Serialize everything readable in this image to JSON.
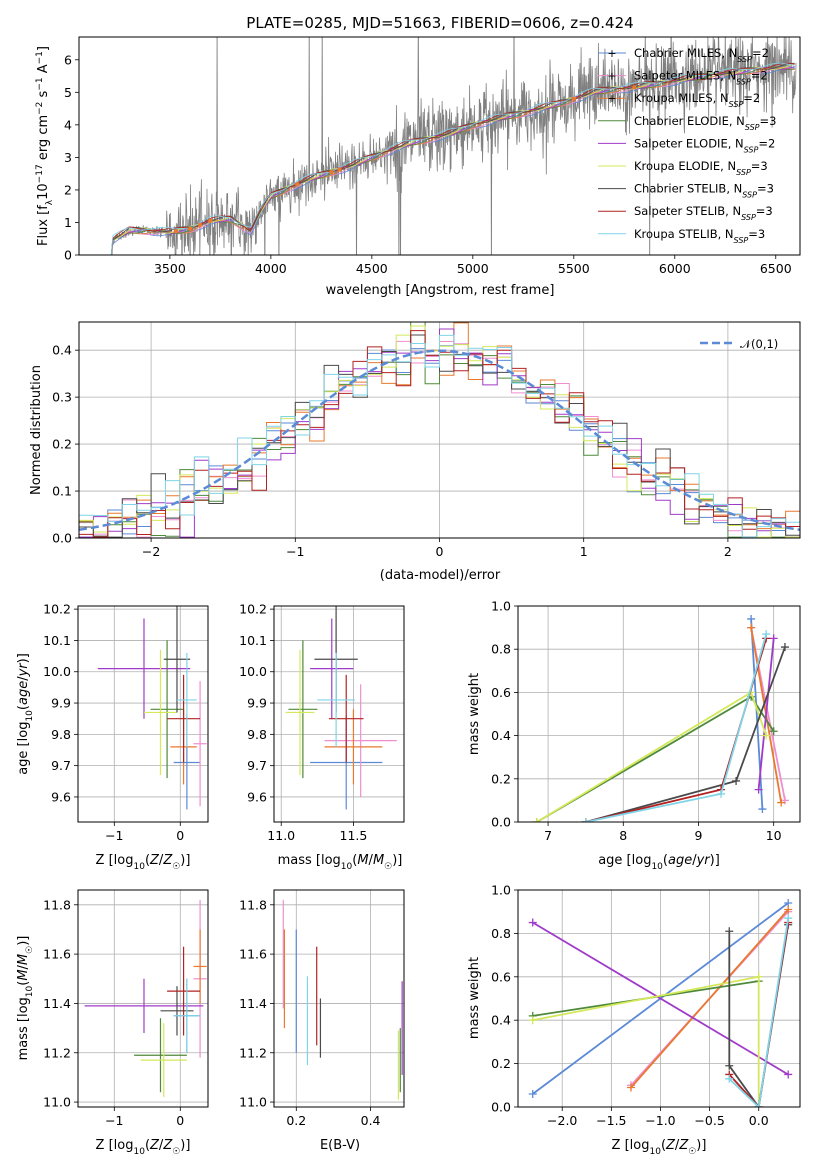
{
  "figure": {
    "title": "PLATE=0285, MJD=51663, FIBERID=0606, z=0.424"
  },
  "colors": {
    "Chabrier MILES": "#5b8ad6",
    "Salpeter MILES": "#f08ed0",
    "Kroupa MILES": "#e8792e",
    "Chabrier ELODIE": "#4e8a3a",
    "Salpeter ELODIE": "#a03bc9",
    "Kroupa ELODIE": "#d4e85a",
    "Chabrier STELIB": "#4a4a4a",
    "Salpeter STELIB": "#b22222",
    "Kroupa STELIB": "#7fd4e8",
    "data": "#808080",
    "normal": "#5b8ad6",
    "grid": "#b0b0b0"
  },
  "chart_data": [
    {
      "id": "spectrum",
      "type": "line",
      "xlabel": "wavelength [Angstrom, rest frame]",
      "ylabel": "Flux [f_λ 10^-17 erg cm^-2 s^-1 A^-1]",
      "xlim": [
        3050,
        6620
      ],
      "ylim": [
        0,
        6.7
      ],
      "xticks": [
        3500,
        4000,
        4500,
        5000,
        5500,
        6000,
        6500
      ],
      "yticks": [
        0,
        1,
        2,
        3,
        4,
        5,
        6
      ],
      "grid": false,
      "legend_position": "top-right",
      "legend": [
        {
          "model": "Chabrier MILES",
          "n": "2"
        },
        {
          "model": "Salpeter MILES",
          "n": "2"
        },
        {
          "model": "Kroupa MILES",
          "n": "2"
        },
        {
          "model": "Chabrier ELODIE",
          "n": "3"
        },
        {
          "model": "Salpeter ELODIE",
          "n": "2"
        },
        {
          "model": "Kroupa ELODIE",
          "n": "3"
        },
        {
          "model": "Chabrier STELIB",
          "n": "3"
        },
        {
          "model": "Salpeter STELIB",
          "n": "3"
        },
        {
          "model": "Kroupa STELIB",
          "n": "3"
        }
      ],
      "continuum": {
        "x": [
          3210,
          3300,
          3400,
          3500,
          3600,
          3700,
          3800,
          3900,
          3950,
          4000,
          4100,
          4200,
          4300,
          4400,
          4500,
          4600,
          4700,
          4800,
          4900,
          5000,
          5100,
          5200,
          5300,
          5400,
          5500,
          5600,
          5700,
          5800,
          5900,
          6000,
          6100,
          6200,
          6300,
          6400,
          6500,
          6600
        ],
        "y": [
          0.45,
          0.75,
          0.75,
          0.7,
          0.8,
          1.05,
          1.1,
          0.75,
          1.35,
          1.8,
          2.1,
          2.35,
          2.55,
          2.75,
          3.0,
          3.25,
          3.45,
          3.6,
          3.75,
          4.0,
          4.15,
          4.3,
          4.45,
          4.6,
          4.8,
          5.0,
          5.1,
          5.15,
          5.25,
          5.35,
          5.45,
          5.55,
          5.6,
          5.7,
          5.75,
          5.8
        ]
      }
    },
    {
      "id": "residuals",
      "type": "line",
      "xlabel": "(data-model)/error",
      "ylabel": "Normed distribution",
      "xlim": [
        -2.5,
        2.5
      ],
      "ylim": [
        0,
        0.46
      ],
      "xticks": [
        -2,
        -1,
        0,
        1,
        2
      ],
      "yticks": [
        0.0,
        0.1,
        0.2,
        0.3,
        0.4
      ],
      "grid": true,
      "legend_position": "top-right",
      "legend_label": "𝒩(0,1)"
    },
    {
      "id": "age-vs-Z",
      "type": "scatter",
      "xlabel": "Z [log10(Z/Z☉)]",
      "ylabel": "age  [log10(age/yr)]",
      "xlim": [
        -1.55,
        0.42
      ],
      "ylim": [
        9.52,
        10.21
      ],
      "xticks": [
        -1,
        0
      ],
      "yticks": [
        9.6,
        9.7,
        9.8,
        9.9,
        10.0,
        10.1,
        10.2
      ],
      "grid": true,
      "points": [
        {
          "model": "Chabrier MILES",
          "x": 0.1,
          "xerr": 0.2,
          "y": 9.71,
          "yerr": 0.15
        },
        {
          "model": "Salpeter MILES",
          "x": 0.3,
          "xerr": 0.1,
          "y": 9.77,
          "yerr": 0.2
        },
        {
          "model": "Kroupa MILES",
          "x": 0.05,
          "xerr": 0.2,
          "y": 9.76,
          "yerr": 0.12
        },
        {
          "model": "Chabrier ELODIE",
          "x": -0.2,
          "xerr": 0.25,
          "y": 9.88,
          "yerr": 0.22
        },
        {
          "model": "Salpeter ELODIE",
          "x": -0.55,
          "xerr": 0.7,
          "y": 10.01,
          "yerr": 0.16
        },
        {
          "model": "Kroupa ELODIE",
          "x": -0.3,
          "xerr": 0.25,
          "y": 9.87,
          "yerr": 0.2
        },
        {
          "model": "Chabrier STELIB",
          "x": -0.05,
          "xerr": 0.2,
          "y": 10.04,
          "yerr": 0.17
        },
        {
          "model": "Salpeter STELIB",
          "x": 0.05,
          "xerr": 0.25,
          "y": 9.85,
          "yerr": 0.14
        },
        {
          "model": "Kroupa STELIB",
          "x": 0.1,
          "xerr": 0.15,
          "y": 9.91,
          "yerr": 0.15
        }
      ]
    },
    {
      "id": "age-vs-mass",
      "type": "scatter",
      "xlabel": "mass [log10(M/M☉)]",
      "ylabel": "",
      "xlim": [
        10.95,
        11.85
      ],
      "ylim": [
        9.52,
        10.21
      ],
      "xticks": [
        11.0,
        11.5
      ],
      "yticks": [
        9.6,
        9.7,
        9.8,
        9.9,
        10.0,
        10.1,
        10.2
      ],
      "grid": true,
      "points": [
        {
          "model": "Chabrier MILES",
          "x": 11.45,
          "xerr": 0.25,
          "y": 9.71,
          "yerr": 0.15
        },
        {
          "model": "Salpeter MILES",
          "x": 11.55,
          "xerr": 0.25,
          "y": 9.78,
          "yerr": 0.18
        },
        {
          "model": "Kroupa MILES",
          "x": 11.5,
          "xerr": 0.2,
          "y": 9.76,
          "yerr": 0.12
        },
        {
          "model": "Chabrier ELODIE",
          "x": 11.15,
          "xerr": 0.1,
          "y": 9.88,
          "yerr": 0.22
        },
        {
          "model": "Salpeter ELODIE",
          "x": 11.35,
          "xerr": 0.15,
          "y": 10.01,
          "yerr": 0.16
        },
        {
          "model": "Kroupa ELODIE",
          "x": 11.13,
          "xerr": 0.1,
          "y": 9.87,
          "yerr": 0.2
        },
        {
          "model": "Chabrier STELIB",
          "x": 11.38,
          "xerr": 0.15,
          "y": 10.04,
          "yerr": 0.17
        },
        {
          "model": "Salpeter STELIB",
          "x": 11.45,
          "xerr": 0.12,
          "y": 9.85,
          "yerr": 0.14
        },
        {
          "model": "Kroupa STELIB",
          "x": 11.38,
          "xerr": 0.13,
          "y": 9.91,
          "yerr": 0.15
        }
      ]
    },
    {
      "id": "mass-weight-vs-age",
      "type": "line",
      "xlabel": "age  [log10(age/yr)]",
      "ylabel": "mass weight",
      "xlim": [
        6.6,
        10.35
      ],
      "ylim": [
        0,
        1
      ],
      "xticks": [
        7,
        8,
        9,
        10
      ],
      "yticks": [
        0.0,
        0.2,
        0.4,
        0.6,
        0.8,
        1.0
      ],
      "grid": true,
      "series": [
        {
          "model": "Chabrier MILES",
          "x": [
            9.7,
            9.85
          ],
          "y": [
            0.94,
            0.06
          ]
        },
        {
          "model": "Salpeter MILES",
          "x": [
            9.7,
            10.15
          ],
          "y": [
            0.9,
            0.1
          ]
        },
        {
          "model": "Kroupa MILES",
          "x": [
            9.7,
            10.1
          ],
          "y": [
            0.9,
            0.09
          ]
        },
        {
          "model": "Chabrier ELODIE",
          "x": [
            6.85,
            9.7,
            10.0
          ],
          "y": [
            0.0,
            0.58,
            0.42
          ]
        },
        {
          "model": "Salpeter ELODIE",
          "x": [
            9.8,
            10.0
          ],
          "y": [
            0.15,
            0.85
          ]
        },
        {
          "model": "Kroupa ELODIE",
          "x": [
            6.85,
            9.7,
            9.9
          ],
          "y": [
            0.0,
            0.6,
            0.4
          ]
        },
        {
          "model": "Chabrier STELIB",
          "x": [
            7.5,
            9.5,
            10.15
          ],
          "y": [
            0.0,
            0.19,
            0.81
          ]
        },
        {
          "model": "Salpeter STELIB",
          "x": [
            7.5,
            9.3,
            9.9
          ],
          "y": [
            0.0,
            0.15,
            0.85
          ]
        },
        {
          "model": "Kroupa STELIB",
          "x": [
            7.5,
            9.3,
            9.9
          ],
          "y": [
            0.0,
            0.13,
            0.87
          ]
        }
      ]
    },
    {
      "id": "mass-vs-Z",
      "type": "scatter",
      "xlabel": "Z [log10(Z/Z☉)]",
      "ylabel": "mass [log10(M/M☉)]",
      "xlim": [
        -1.55,
        0.42
      ],
      "ylim": [
        10.98,
        11.86
      ],
      "xticks": [
        -1,
        0
      ],
      "yticks": [
        11.0,
        11.2,
        11.4,
        11.6,
        11.8
      ],
      "grid": true,
      "points": [
        {
          "model": "Chabrier MILES",
          "x": 0.1,
          "xerr": 0.2,
          "y": 11.35,
          "yerr": 0.15
        },
        {
          "model": "Salpeter MILES",
          "x": 0.3,
          "xerr": 0.1,
          "y": 11.5,
          "yerr": 0.32
        },
        {
          "model": "Kroupa MILES",
          "x": 0.3,
          "xerr": 0.1,
          "y": 11.55,
          "yerr": 0.15
        },
        {
          "model": "Chabrier ELODIE",
          "x": -0.3,
          "xerr": 0.4,
          "y": 11.19,
          "yerr": 0.15
        },
        {
          "model": "Salpeter ELODIE",
          "x": -0.55,
          "xerr": 0.9,
          "y": 11.39,
          "yerr": 0.11
        },
        {
          "model": "Kroupa ELODIE",
          "x": -0.25,
          "xerr": 0.35,
          "y": 11.17,
          "yerr": 0.15
        },
        {
          "model": "Chabrier STELIB",
          "x": -0.05,
          "xerr": 0.25,
          "y": 11.37,
          "yerr": 0.1
        },
        {
          "model": "Salpeter STELIB",
          "x": 0.05,
          "xerr": 0.25,
          "y": 11.45,
          "yerr": 0.18
        },
        {
          "model": "Kroupa STELIB",
          "x": 0.1,
          "xerr": 0.2,
          "y": 11.35,
          "yerr": 0.15
        }
      ]
    },
    {
      "id": "mass-vs-ebv",
      "type": "scatter",
      "xlabel": "E(B-V)",
      "ylabel": "",
      "xlim": [
        0.14,
        0.49
      ],
      "ylim": [
        10.98,
        11.86
      ],
      "xticks": [
        0.2,
        0.4
      ],
      "yticks": [
        11.0,
        11.2,
        11.4,
        11.6,
        11.8
      ],
      "grid": true,
      "points": [
        {
          "model": "Chabrier MILES",
          "x": 0.2,
          "y": 11.45,
          "yerr": 0.25
        },
        {
          "model": "Salpeter MILES",
          "x": 0.165,
          "y": 11.6,
          "yerr": 0.22
        },
        {
          "model": "Kroupa MILES",
          "x": 0.168,
          "y": 11.5,
          "yerr": 0.2
        },
        {
          "model": "Chabrier ELODIE",
          "x": 0.48,
          "y": 11.17,
          "yerr": 0.13
        },
        {
          "model": "Salpeter ELODIE",
          "x": 0.485,
          "y": 11.3,
          "yerr": 0.19
        },
        {
          "model": "Kroupa ELODIE",
          "x": 0.475,
          "y": 11.15,
          "yerr": 0.14
        },
        {
          "model": "Chabrier STELIB",
          "x": 0.265,
          "y": 11.3,
          "yerr": 0.12
        },
        {
          "model": "Salpeter STELIB",
          "x": 0.255,
          "y": 11.43,
          "yerr": 0.2
        },
        {
          "model": "Kroupa STELIB",
          "x": 0.23,
          "y": 11.33,
          "yerr": 0.18
        }
      ]
    },
    {
      "id": "mass-weight-vs-Z",
      "type": "line",
      "xlabel": "Z [log10(Z/Z☉)]",
      "ylabel": "mass weight",
      "xlim": [
        -2.45,
        0.42
      ],
      "ylim": [
        0,
        1
      ],
      "xticks": [
        -2.0,
        -1.5,
        -1.0,
        -0.5,
        0.0
      ],
      "yticks": [
        0.0,
        0.2,
        0.4,
        0.6,
        0.8,
        1.0
      ],
      "grid": true,
      "series": [
        {
          "model": "Chabrier MILES",
          "x": [
            -2.3,
            0.3
          ],
          "y": [
            0.06,
            0.94
          ]
        },
        {
          "model": "Salpeter MILES",
          "x": [
            -1.3,
            0.3
          ],
          "y": [
            0.1,
            0.9
          ]
        },
        {
          "model": "Kroupa MILES",
          "x": [
            -1.3,
            0.3
          ],
          "y": [
            0.09,
            0.91
          ]
        },
        {
          "model": "Chabrier ELODIE",
          "x": [
            -2.3,
            0.0
          ],
          "y": [
            0.42,
            0.58
          ]
        },
        {
          "model": "Salpeter ELODIE",
          "x": [
            -2.3,
            0.3
          ],
          "y": [
            0.85,
            0.15
          ]
        },
        {
          "model": "Kroupa ELODIE",
          "x": [
            -2.3,
            0.0,
            0.0
          ],
          "y": [
            0.4,
            0.6,
            0.0
          ]
        },
        {
          "model": "Chabrier STELIB",
          "x": [
            -0.3,
            -0.3,
            0.0,
            0.3
          ],
          "y": [
            0.81,
            0.19,
            0.0,
            0.84
          ]
        },
        {
          "model": "Salpeter STELIB",
          "x": [
            -0.3,
            0.0,
            0.3
          ],
          "y": [
            0.15,
            0.0,
            0.85
          ]
        },
        {
          "model": "Kroupa STELIB",
          "x": [
            -0.3,
            0.0,
            0.3
          ],
          "y": [
            0.13,
            0.0,
            0.87
          ]
        }
      ]
    }
  ]
}
